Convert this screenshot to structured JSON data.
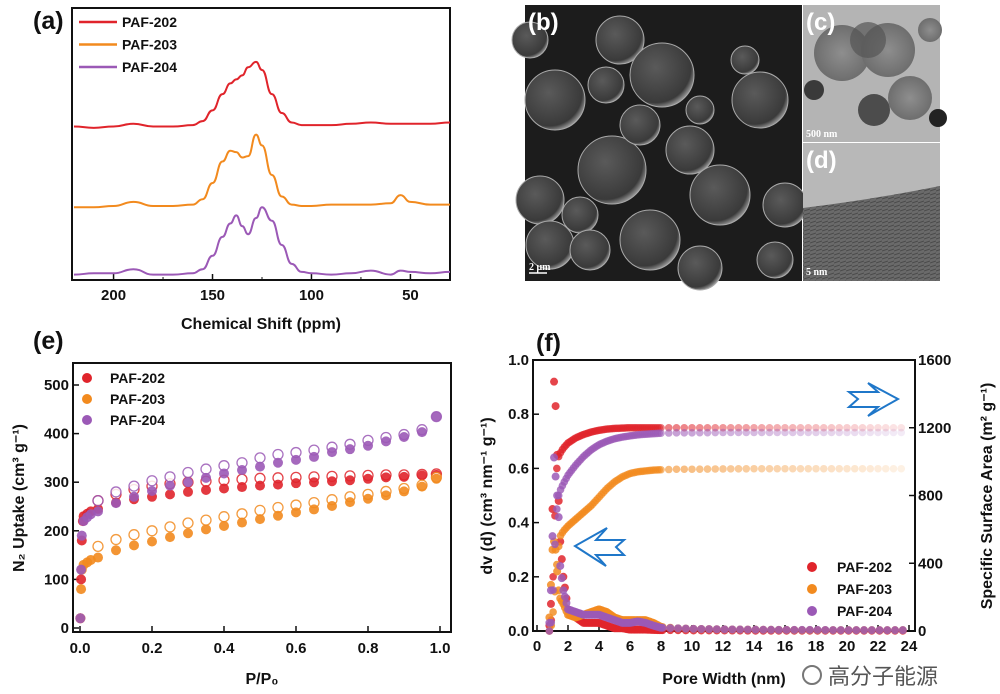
{
  "panels": {
    "a": "(a)",
    "b": "(b)",
    "c": "(c)",
    "d": "(d)",
    "e": "(e)",
    "f": "(f)"
  },
  "images": {
    "b_scale": "2 μm",
    "c_scale": "500 nm",
    "d_scale": "5 nm"
  },
  "watermark": "高分子能源",
  "colors": {
    "PAF-202": "#e0242b",
    "PAF-203": "#f28a1e",
    "PAF-204": "#9b59b6",
    "arrow": "#1f77c9"
  },
  "chart_data": [
    {
      "id": "a",
      "type": "line",
      "xlabel": "Chemical Shift (ppm)",
      "ylabel": "",
      "xlim": [
        221,
        30
      ],
      "ylim": [
        0,
        10.1
      ],
      "x_ticks": [
        200,
        150,
        100,
        50
      ],
      "legend": "top-left",
      "x": [
        220,
        210,
        200,
        190,
        180,
        170,
        160,
        155,
        150,
        145,
        141,
        138,
        135,
        132,
        128,
        125,
        120,
        115,
        110,
        105,
        100,
        90,
        80,
        70,
        60,
        55,
        50,
        40,
        30
      ],
      "series": [
        {
          "name": "PAF-202",
          "values": [
            5.7,
            5.65,
            5.7,
            5.8,
            5.7,
            5.7,
            5.75,
            5.9,
            6.3,
            6.9,
            7.3,
            7.45,
            7.6,
            7.9,
            8.1,
            7.8,
            6.9,
            6.2,
            5.85,
            5.75,
            5.75,
            5.75,
            5.8,
            5.85,
            5.8,
            5.8,
            5.8,
            5.8,
            5.85
          ]
        },
        {
          "name": "PAF-203",
          "values": [
            2.7,
            2.7,
            2.75,
            2.9,
            2.75,
            2.75,
            2.8,
            3.0,
            3.6,
            4.4,
            4.8,
            4.75,
            4.55,
            4.6,
            5.4,
            5.0,
            3.9,
            3.1,
            2.8,
            2.75,
            2.75,
            2.8,
            2.8,
            2.8,
            2.85,
            3.15,
            2.9,
            2.8,
            2.8
          ]
        },
        {
          "name": "PAF-204",
          "values": [
            0.2,
            0.25,
            0.25,
            0.4,
            0.2,
            0.2,
            0.25,
            0.4,
            0.9,
            1.6,
            2.1,
            2.4,
            2.0,
            1.7,
            2.3,
            2.7,
            2.2,
            1.3,
            0.6,
            0.3,
            0.25,
            0.2,
            0.25,
            0.35,
            0.2,
            0.35,
            0.3,
            0.25,
            0.3
          ]
        }
      ]
    },
    {
      "id": "e",
      "type": "scatter",
      "xlabel": "P/P₀",
      "ylabel": "N₂ Uptake (cm³ g⁻¹)",
      "xlim": [
        -0.02,
        1.03
      ],
      "ylim": [
        -8,
        545
      ],
      "x_ticks": [
        0.0,
        0.2,
        0.4,
        0.6,
        0.8,
        1.0
      ],
      "y_ticks": [
        0,
        100,
        200,
        300,
        400,
        500
      ],
      "legend": "top-left",
      "series": [
        {
          "name": "PAF-202",
          "adsorption": {
            "x": [
              0.001,
              0.003,
              0.005,
              0.008,
              0.01,
              0.02,
              0.03,
              0.05,
              0.1,
              0.15,
              0.2,
              0.25,
              0.3,
              0.35,
              0.4,
              0.45,
              0.5,
              0.55,
              0.6,
              0.65,
              0.7,
              0.75,
              0.8,
              0.85,
              0.9,
              0.95,
              0.99
            ],
            "y": [
              20,
              100,
              180,
              220,
              230,
              235,
              240,
              245,
              258,
              265,
              270,
              275,
              280,
              284,
              287,
              290,
              293,
              295,
              298,
              300,
              302,
              304,
              307,
              310,
              311,
              314,
              315
            ]
          },
          "desorption": {
            "x": [
              0.05,
              0.1,
              0.15,
              0.2,
              0.25,
              0.3,
              0.35,
              0.4,
              0.45,
              0.5,
              0.55,
              0.6,
              0.65,
              0.7,
              0.75,
              0.8,
              0.85,
              0.9,
              0.95,
              0.99
            ],
            "y": [
              262,
              275,
              285,
              292,
              297,
              300,
              302,
              304,
              306,
              308,
              309,
              310,
              311,
              312,
              313,
              314,
              315,
              315,
              316,
              317
            ]
          }
        },
        {
          "name": "PAF-203",
          "adsorption": {
            "x": [
              0.001,
              0.003,
              0.005,
              0.01,
              0.02,
              0.03,
              0.05,
              0.1,
              0.15,
              0.2,
              0.25,
              0.3,
              0.35,
              0.4,
              0.45,
              0.5,
              0.55,
              0.6,
              0.65,
              0.7,
              0.75,
              0.8,
              0.85,
              0.9,
              0.95,
              0.99
            ],
            "y": [
              20,
              80,
              120,
              130,
              135,
              140,
              145,
              160,
              170,
              178,
              187,
              195,
              203,
              210,
              217,
              224,
              231,
              238,
              244,
              251,
              259,
              266,
              273,
              281,
              291,
              307
            ]
          },
          "desorption": {
            "x": [
              0.05,
              0.1,
              0.15,
              0.2,
              0.25,
              0.3,
              0.35,
              0.4,
              0.45,
              0.5,
              0.55,
              0.6,
              0.65,
              0.7,
              0.75,
              0.8,
              0.85,
              0.9,
              0.95,
              0.99
            ],
            "y": [
              168,
              182,
              192,
              200,
              208,
              216,
              222,
              229,
              235,
              242,
              248,
              253,
              258,
              264,
              270,
              275,
              281,
              287,
              294,
              310
            ]
          }
        },
        {
          "name": "PAF-204",
          "adsorption": {
            "x": [
              0.001,
              0.003,
              0.005,
              0.01,
              0.02,
              0.03,
              0.05,
              0.1,
              0.15,
              0.2,
              0.25,
              0.3,
              0.35,
              0.4,
              0.45,
              0.5,
              0.55,
              0.6,
              0.65,
              0.7,
              0.75,
              0.8,
              0.85,
              0.9,
              0.95,
              0.99
            ],
            "y": [
              20,
              120,
              190,
              220,
              228,
              234,
              240,
              257,
              270,
              282,
              293,
              300,
              309,
              318,
              325,
              332,
              340,
              346,
              352,
              362,
              368,
              375,
              384,
              393,
              403,
              435
            ]
          },
          "desorption": {
            "x": [
              0.05,
              0.1,
              0.15,
              0.2,
              0.25,
              0.3,
              0.35,
              0.4,
              0.45,
              0.5,
              0.55,
              0.6,
              0.65,
              0.7,
              0.75,
              0.8,
              0.85,
              0.9,
              0.95,
              0.99
            ],
            "y": [
              262,
              280,
              292,
              303,
              311,
              320,
              327,
              334,
              340,
              350,
              357,
              361,
              366,
              372,
              378,
              386,
              392,
              398,
              408,
              435
            ]
          }
        }
      ]
    },
    {
      "id": "f",
      "type": "scatter",
      "xlabel": "Pore Width (nm)",
      "ylabel": "dv (d) (cm³ nm⁻¹ g⁻¹)",
      "ylabel_right": "Specific Surface Area (m² g⁻¹)",
      "xlim": [
        0,
        24.4
      ],
      "ylim": [
        0,
        1.0
      ],
      "ylim_right": [
        0,
        1600
      ],
      "x_ticks": [
        0,
        2,
        4,
        6,
        8,
        10,
        12,
        14,
        16,
        18,
        20,
        22,
        24
      ],
      "y_ticks": [
        0.0,
        0.2,
        0.4,
        0.6,
        0.8,
        1.0
      ],
      "y_ticks_right": [
        0,
        400,
        800,
        1200,
        1600
      ],
      "legend": "bottom-right",
      "x": [
        0.8,
        0.9,
        1.0,
        1.1,
        1.2,
        1.3,
        1.4,
        1.5,
        1.7,
        2,
        2.5,
        3,
        3.5,
        4,
        4.5,
        5,
        5.5,
        6,
        6.5,
        7,
        7.5,
        8,
        9,
        10,
        12,
        14,
        16,
        18,
        20,
        22,
        24
      ],
      "series": [
        {
          "name": "PAF-202",
          "pore_size_distribution": [
            0.02,
            0.1,
            0.45,
            0.92,
            0.83,
            0.65,
            0.48,
            0.33,
            0.2,
            0.08,
            0.05,
            0.03,
            0.03,
            0.03,
            0.02,
            0.01,
            0.01,
            0.005,
            0.005,
            0.005,
            0.004,
            0.003,
            0.003,
            0.002,
            0.002,
            0.001,
            0.001,
            0.001,
            0.001,
            0.001,
            0.001
          ],
          "cumulative_surface_area": [
            0,
            30,
            200,
            500,
            800,
            1000,
            1030,
            1050,
            1080,
            1110,
            1140,
            1160,
            1175,
            1185,
            1192,
            1196,
            1198,
            1200,
            1200,
            1200,
            1200,
            1200,
            1200,
            1200,
            1200,
            1200,
            1200,
            1200,
            1200,
            1200,
            1200
          ]
        },
        {
          "name": "PAF-203",
          "pore_size_distribution": [
            0.05,
            0.17,
            0.3,
            0.33,
            0.3,
            0.22,
            0.15,
            0.12,
            0.1,
            0.06,
            0.05,
            0.06,
            0.07,
            0.08,
            0.07,
            0.05,
            0.04,
            0.04,
            0.04,
            0.04,
            0.03,
            0.015,
            0.01,
            0.008,
            0.006,
            0.005,
            0.004,
            0.003,
            0.003,
            0.003,
            0.003
          ],
          "cumulative_surface_area": [
            0,
            20,
            80,
            160,
            280,
            420,
            500,
            560,
            590,
            620,
            660,
            700,
            740,
            790,
            840,
            880,
            910,
            930,
            940,
            945,
            950,
            952,
            955,
            955,
            957,
            958,
            958,
            958,
            958,
            958,
            958
          ]
        },
        {
          "name": "PAF-204",
          "pore_size_distribution": [
            0.03,
            0.15,
            0.35,
            0.64,
            0.57,
            0.5,
            0.42,
            0.24,
            0.15,
            0.08,
            0.07,
            0.06,
            0.06,
            0.06,
            0.05,
            0.04,
            0.03,
            0.03,
            0.035,
            0.03,
            0.02,
            0.012,
            0.01,
            0.008,
            0.006,
            0.005,
            0.004,
            0.004,
            0.003,
            0.003,
            0.003
          ],
          "cumulative_surface_area": [
            0,
            25,
            150,
            380,
            600,
            750,
            800,
            830,
            870,
            920,
            980,
            1030,
            1070,
            1100,
            1120,
            1135,
            1145,
            1152,
            1158,
            1162,
            1165,
            1168,
            1170,
            1170,
            1172,
            1172,
            1172,
            1172,
            1172,
            1172,
            1172
          ]
        }
      ]
    }
  ]
}
